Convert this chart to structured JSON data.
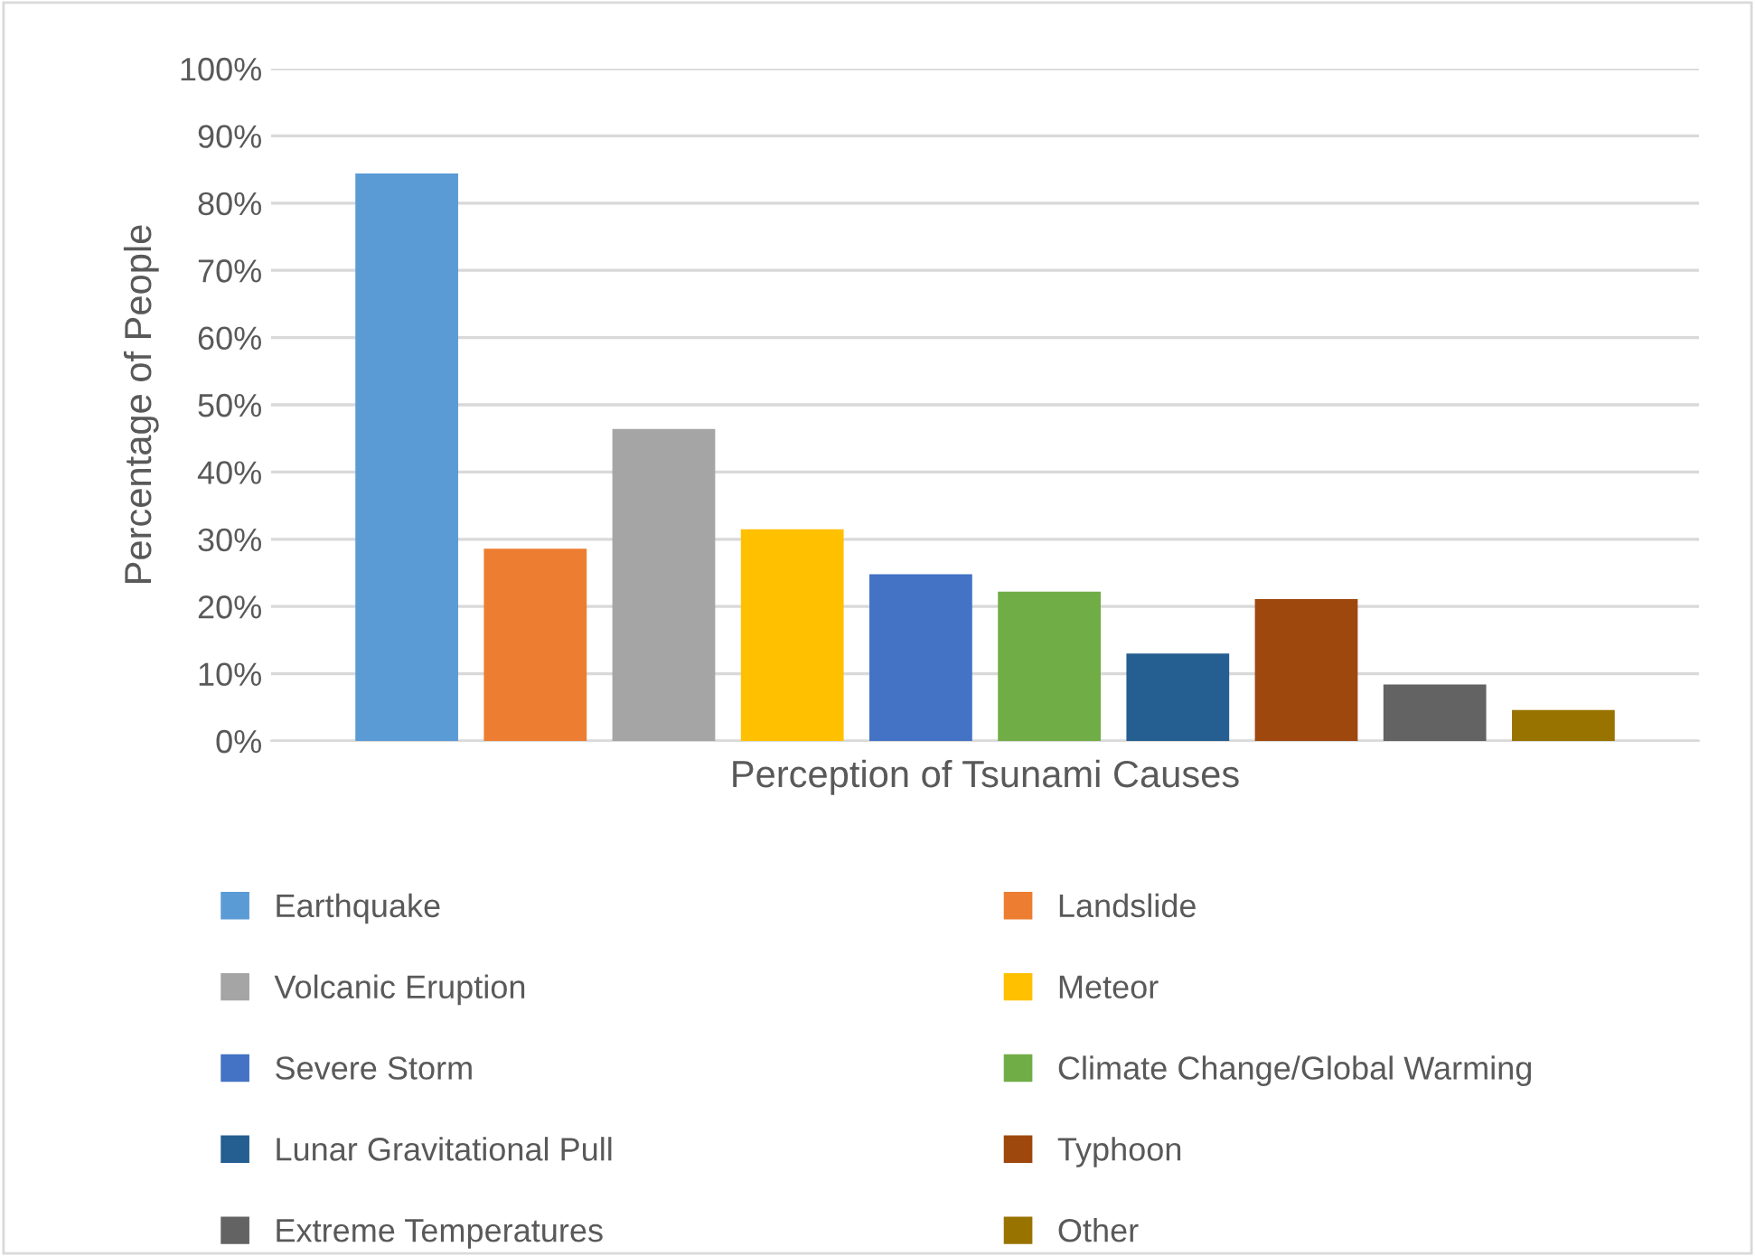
{
  "chart_data": {
    "type": "bar",
    "xlabel": "Perception of Tsunami Causes",
    "ylabel": "Percentage of People",
    "categories": [
      null
    ],
    "series": [
      {
        "name": "Earthquake",
        "color": "#5b9bd5",
        "values": [
          84.4
        ]
      },
      {
        "name": "Landslide",
        "color": "#ed7d31",
        "values": [
          28.6
        ]
      },
      {
        "name": "Volcanic Eruption",
        "color": "#a5a5a5",
        "values": [
          46.4
        ]
      },
      {
        "name": "Meteor",
        "color": "#ffc000",
        "values": [
          31.5
        ]
      },
      {
        "name": "Severe Storm",
        "color": "#4472c4",
        "values": [
          24.8
        ]
      },
      {
        "name": "Climate Change/Global Warming",
        "color": "#70ad47",
        "values": [
          22.2
        ]
      },
      {
        "name": "Lunar Gravitational Pull",
        "color": "#255e91",
        "values": [
          13.0
        ]
      },
      {
        "name": "Typhoon",
        "color": "#9e480e",
        "values": [
          21.1
        ]
      },
      {
        "name": "Extreme Temperatures",
        "color": "#636363",
        "values": [
          8.4
        ]
      },
      {
        "name": "Other",
        "color": "#997300",
        "values": [
          4.6
        ]
      }
    ],
    "ylim": [
      0,
      100
    ],
    "yticks": [
      {
        "value": 0,
        "label": "0%"
      },
      {
        "value": 10,
        "label": "10%"
      },
      {
        "value": 20,
        "label": "20%"
      },
      {
        "value": 30,
        "label": "30%"
      },
      {
        "value": 40,
        "label": "40%"
      },
      {
        "value": 50,
        "label": "50%"
      },
      {
        "value": 60,
        "label": "60%"
      },
      {
        "value": 70,
        "label": "70%"
      },
      {
        "value": 80,
        "label": "80%"
      },
      {
        "value": 90,
        "label": "90%"
      },
      {
        "value": 100,
        "label": "100%"
      }
    ],
    "grid": "y",
    "legend": "bottom"
  }
}
